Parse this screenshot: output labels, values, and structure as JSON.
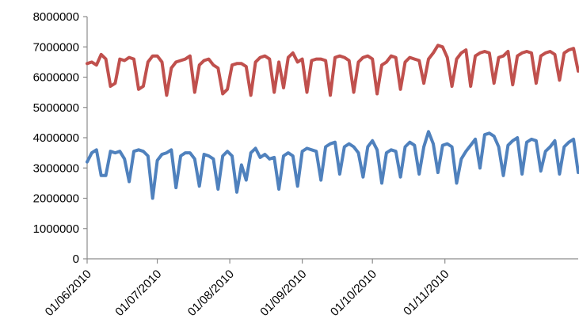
{
  "chart_data": {
    "type": "line",
    "title": "",
    "xlabel": "",
    "ylabel": "",
    "ylim": [
      0,
      8000000
    ],
    "yticks": [
      "0",
      "1000000",
      "2000000",
      "3000000",
      "4000000",
      "5000000",
      "6000000",
      "7000000",
      "8000000"
    ],
    "xticks": [
      "01/06/2010",
      "01/07/2010",
      "01/08/2010",
      "01/09/2010",
      "01/10/2010",
      "01/11/2010"
    ],
    "xrange": [
      "2010-06-01",
      "2010-12-28"
    ],
    "grid": false,
    "legend": "none",
    "series": [
      {
        "color": "#c0504d",
        "points": [
          [
            "2010-06-01",
            6450000
          ],
          [
            "2010-06-03",
            6500000
          ],
          [
            "2010-06-05",
            6400000
          ],
          [
            "2010-06-07",
            6750000
          ],
          [
            "2010-06-09",
            6600000
          ],
          [
            "2010-06-11",
            5700000
          ],
          [
            "2010-06-13",
            5800000
          ],
          [
            "2010-06-15",
            6600000
          ],
          [
            "2010-06-17",
            6550000
          ],
          [
            "2010-06-19",
            6650000
          ],
          [
            "2010-06-21",
            6600000
          ],
          [
            "2010-06-23",
            5600000
          ],
          [
            "2010-06-25",
            5700000
          ],
          [
            "2010-06-27",
            6500000
          ],
          [
            "2010-06-29",
            6700000
          ],
          [
            "2010-07-01",
            6700000
          ],
          [
            "2010-07-03",
            6500000
          ],
          [
            "2010-07-05",
            5400000
          ],
          [
            "2010-07-07",
            6300000
          ],
          [
            "2010-07-09",
            6500000
          ],
          [
            "2010-07-11",
            6550000
          ],
          [
            "2010-07-13",
            6600000
          ],
          [
            "2010-07-15",
            6700000
          ],
          [
            "2010-07-17",
            5500000
          ],
          [
            "2010-07-19",
            6400000
          ],
          [
            "2010-07-21",
            6550000
          ],
          [
            "2010-07-23",
            6600000
          ],
          [
            "2010-07-25",
            6400000
          ],
          [
            "2010-07-27",
            6300000
          ],
          [
            "2010-07-29",
            5450000
          ],
          [
            "2010-07-31",
            5600000
          ],
          [
            "2010-08-02",
            6400000
          ],
          [
            "2010-08-04",
            6450000
          ],
          [
            "2010-08-06",
            6450000
          ],
          [
            "2010-08-08",
            6350000
          ],
          [
            "2010-08-10",
            5400000
          ],
          [
            "2010-08-12",
            6500000
          ],
          [
            "2010-08-14",
            6650000
          ],
          [
            "2010-08-16",
            6700000
          ],
          [
            "2010-08-18",
            6600000
          ],
          [
            "2010-08-20",
            5500000
          ],
          [
            "2010-08-22",
            6500000
          ],
          [
            "2010-08-24",
            5650000
          ],
          [
            "2010-08-26",
            6650000
          ],
          [
            "2010-08-28",
            6800000
          ],
          [
            "2010-08-30",
            6500000
          ],
          [
            "2010-09-01",
            6600000
          ],
          [
            "2010-09-03",
            5500000
          ],
          [
            "2010-09-05",
            6550000
          ],
          [
            "2010-09-07",
            6600000
          ],
          [
            "2010-09-09",
            6600000
          ],
          [
            "2010-09-11",
            6550000
          ],
          [
            "2010-09-13",
            5400000
          ],
          [
            "2010-09-15",
            6650000
          ],
          [
            "2010-09-17",
            6700000
          ],
          [
            "2010-09-19",
            6650000
          ],
          [
            "2010-09-21",
            6550000
          ],
          [
            "2010-09-23",
            5500000
          ],
          [
            "2010-09-25",
            6500000
          ],
          [
            "2010-09-27",
            6650000
          ],
          [
            "2010-09-29",
            6700000
          ],
          [
            "2010-10-01",
            6600000
          ],
          [
            "2010-10-03",
            5450000
          ],
          [
            "2010-10-05",
            6400000
          ],
          [
            "2010-10-07",
            6500000
          ],
          [
            "2010-10-09",
            6700000
          ],
          [
            "2010-10-11",
            6650000
          ],
          [
            "2010-10-13",
            5600000
          ],
          [
            "2010-10-15",
            6500000
          ],
          [
            "2010-10-17",
            6650000
          ],
          [
            "2010-10-19",
            6600000
          ],
          [
            "2010-10-21",
            6550000
          ],
          [
            "2010-10-23",
            5800000
          ],
          [
            "2010-10-25",
            6600000
          ],
          [
            "2010-10-27",
            6800000
          ],
          [
            "2010-10-29",
            7050000
          ],
          [
            "2010-10-31",
            7000000
          ],
          [
            "2010-11-02",
            6650000
          ],
          [
            "2010-11-04",
            5700000
          ],
          [
            "2010-11-06",
            6600000
          ],
          [
            "2010-11-08",
            6800000
          ],
          [
            "2010-11-10",
            6900000
          ],
          [
            "2010-11-12",
            5700000
          ],
          [
            "2010-11-14",
            6700000
          ],
          [
            "2010-11-16",
            6800000
          ],
          [
            "2010-11-18",
            6850000
          ],
          [
            "2010-11-20",
            6800000
          ],
          [
            "2010-11-22",
            5800000
          ],
          [
            "2010-11-24",
            6650000
          ],
          [
            "2010-11-26",
            6700000
          ],
          [
            "2010-11-28",
            6850000
          ],
          [
            "2010-11-30",
            5750000
          ],
          [
            "2010-12-02",
            6700000
          ],
          [
            "2010-12-04",
            6800000
          ],
          [
            "2010-12-06",
            6850000
          ],
          [
            "2010-12-08",
            6800000
          ],
          [
            "2010-12-10",
            5800000
          ],
          [
            "2010-12-12",
            6700000
          ],
          [
            "2010-12-14",
            6800000
          ],
          [
            "2010-12-16",
            6850000
          ],
          [
            "2010-12-18",
            6750000
          ],
          [
            "2010-12-20",
            5900000
          ],
          [
            "2010-12-22",
            6800000
          ],
          [
            "2010-12-24",
            6900000
          ],
          [
            "2010-12-26",
            6950000
          ],
          [
            "2010-12-28",
            6200000
          ]
        ]
      },
      {
        "color": "#4f81bd",
        "points": [
          [
            "2010-06-01",
            3200000
          ],
          [
            "2010-06-03",
            3500000
          ],
          [
            "2010-06-05",
            3600000
          ],
          [
            "2010-06-07",
            2750000
          ],
          [
            "2010-06-09",
            2750000
          ],
          [
            "2010-06-11",
            3550000
          ],
          [
            "2010-06-13",
            3500000
          ],
          [
            "2010-06-15",
            3550000
          ],
          [
            "2010-06-17",
            3300000
          ],
          [
            "2010-06-19",
            2550000
          ],
          [
            "2010-06-21",
            3550000
          ],
          [
            "2010-06-23",
            3600000
          ],
          [
            "2010-06-25",
            3550000
          ],
          [
            "2010-06-27",
            3400000
          ],
          [
            "2010-06-29",
            2000000
          ],
          [
            "2010-07-01",
            3250000
          ],
          [
            "2010-07-03",
            3450000
          ],
          [
            "2010-07-05",
            3500000
          ],
          [
            "2010-07-07",
            3600000
          ],
          [
            "2010-07-09",
            2350000
          ],
          [
            "2010-07-11",
            3400000
          ],
          [
            "2010-07-13",
            3500000
          ],
          [
            "2010-07-15",
            3500000
          ],
          [
            "2010-07-17",
            3300000
          ],
          [
            "2010-07-19",
            2400000
          ],
          [
            "2010-07-21",
            3450000
          ],
          [
            "2010-07-23",
            3400000
          ],
          [
            "2010-07-25",
            3300000
          ],
          [
            "2010-07-27",
            2300000
          ],
          [
            "2010-07-29",
            3400000
          ],
          [
            "2010-07-31",
            3550000
          ],
          [
            "2010-08-02",
            3400000
          ],
          [
            "2010-08-04",
            2200000
          ],
          [
            "2010-08-06",
            3100000
          ],
          [
            "2010-08-08",
            2600000
          ],
          [
            "2010-08-10",
            3500000
          ],
          [
            "2010-08-12",
            3650000
          ],
          [
            "2010-08-14",
            3350000
          ],
          [
            "2010-08-16",
            3450000
          ],
          [
            "2010-08-18",
            3300000
          ],
          [
            "2010-08-20",
            3350000
          ],
          [
            "2010-08-22",
            2300000
          ],
          [
            "2010-08-24",
            3400000
          ],
          [
            "2010-08-26",
            3500000
          ],
          [
            "2010-08-28",
            3400000
          ],
          [
            "2010-08-30",
            2400000
          ],
          [
            "2010-09-01",
            3550000
          ],
          [
            "2010-09-03",
            3650000
          ],
          [
            "2010-09-05",
            3600000
          ],
          [
            "2010-09-07",
            3550000
          ],
          [
            "2010-09-09",
            2600000
          ],
          [
            "2010-09-11",
            3700000
          ],
          [
            "2010-09-13",
            3800000
          ],
          [
            "2010-09-15",
            3850000
          ],
          [
            "2010-09-17",
            2800000
          ],
          [
            "2010-09-19",
            3700000
          ],
          [
            "2010-09-21",
            3800000
          ],
          [
            "2010-09-23",
            3700000
          ],
          [
            "2010-09-25",
            3500000
          ],
          [
            "2010-09-27",
            2700000
          ],
          [
            "2010-09-29",
            3700000
          ],
          [
            "2010-10-01",
            3900000
          ],
          [
            "2010-10-03",
            3600000
          ],
          [
            "2010-10-05",
            2500000
          ],
          [
            "2010-10-07",
            3500000
          ],
          [
            "2010-10-09",
            3600000
          ],
          [
            "2010-10-11",
            3550000
          ],
          [
            "2010-10-13",
            2700000
          ],
          [
            "2010-10-15",
            3700000
          ],
          [
            "2010-10-17",
            3850000
          ],
          [
            "2010-10-19",
            3750000
          ],
          [
            "2010-10-21",
            2800000
          ],
          [
            "2010-10-23",
            3700000
          ],
          [
            "2010-10-25",
            4200000
          ],
          [
            "2010-10-27",
            3800000
          ],
          [
            "2010-10-29",
            2850000
          ],
          [
            "2010-10-31",
            3750000
          ],
          [
            "2010-11-02",
            3800000
          ],
          [
            "2010-11-04",
            3700000
          ],
          [
            "2010-11-06",
            2500000
          ],
          [
            "2010-11-08",
            3300000
          ],
          [
            "2010-11-10",
            3550000
          ],
          [
            "2010-11-12",
            3750000
          ],
          [
            "2010-11-14",
            3950000
          ],
          [
            "2010-11-16",
            3000000
          ],
          [
            "2010-11-18",
            4100000
          ],
          [
            "2010-11-20",
            4150000
          ],
          [
            "2010-11-22",
            4050000
          ],
          [
            "2010-11-24",
            3700000
          ],
          [
            "2010-11-26",
            2750000
          ],
          [
            "2010-11-28",
            3750000
          ],
          [
            "2010-11-30",
            3900000
          ],
          [
            "2010-12-02",
            4000000
          ],
          [
            "2010-12-04",
            2800000
          ],
          [
            "2010-12-06",
            3850000
          ],
          [
            "2010-12-08",
            3950000
          ],
          [
            "2010-12-10",
            3900000
          ],
          [
            "2010-12-12",
            2900000
          ],
          [
            "2010-12-14",
            3550000
          ],
          [
            "2010-12-16",
            3700000
          ],
          [
            "2010-12-18",
            3900000
          ],
          [
            "2010-12-20",
            2800000
          ],
          [
            "2010-12-22",
            3700000
          ],
          [
            "2010-12-24",
            3850000
          ],
          [
            "2010-12-26",
            3950000
          ],
          [
            "2010-12-28",
            2850000
          ]
        ]
      }
    ]
  }
}
